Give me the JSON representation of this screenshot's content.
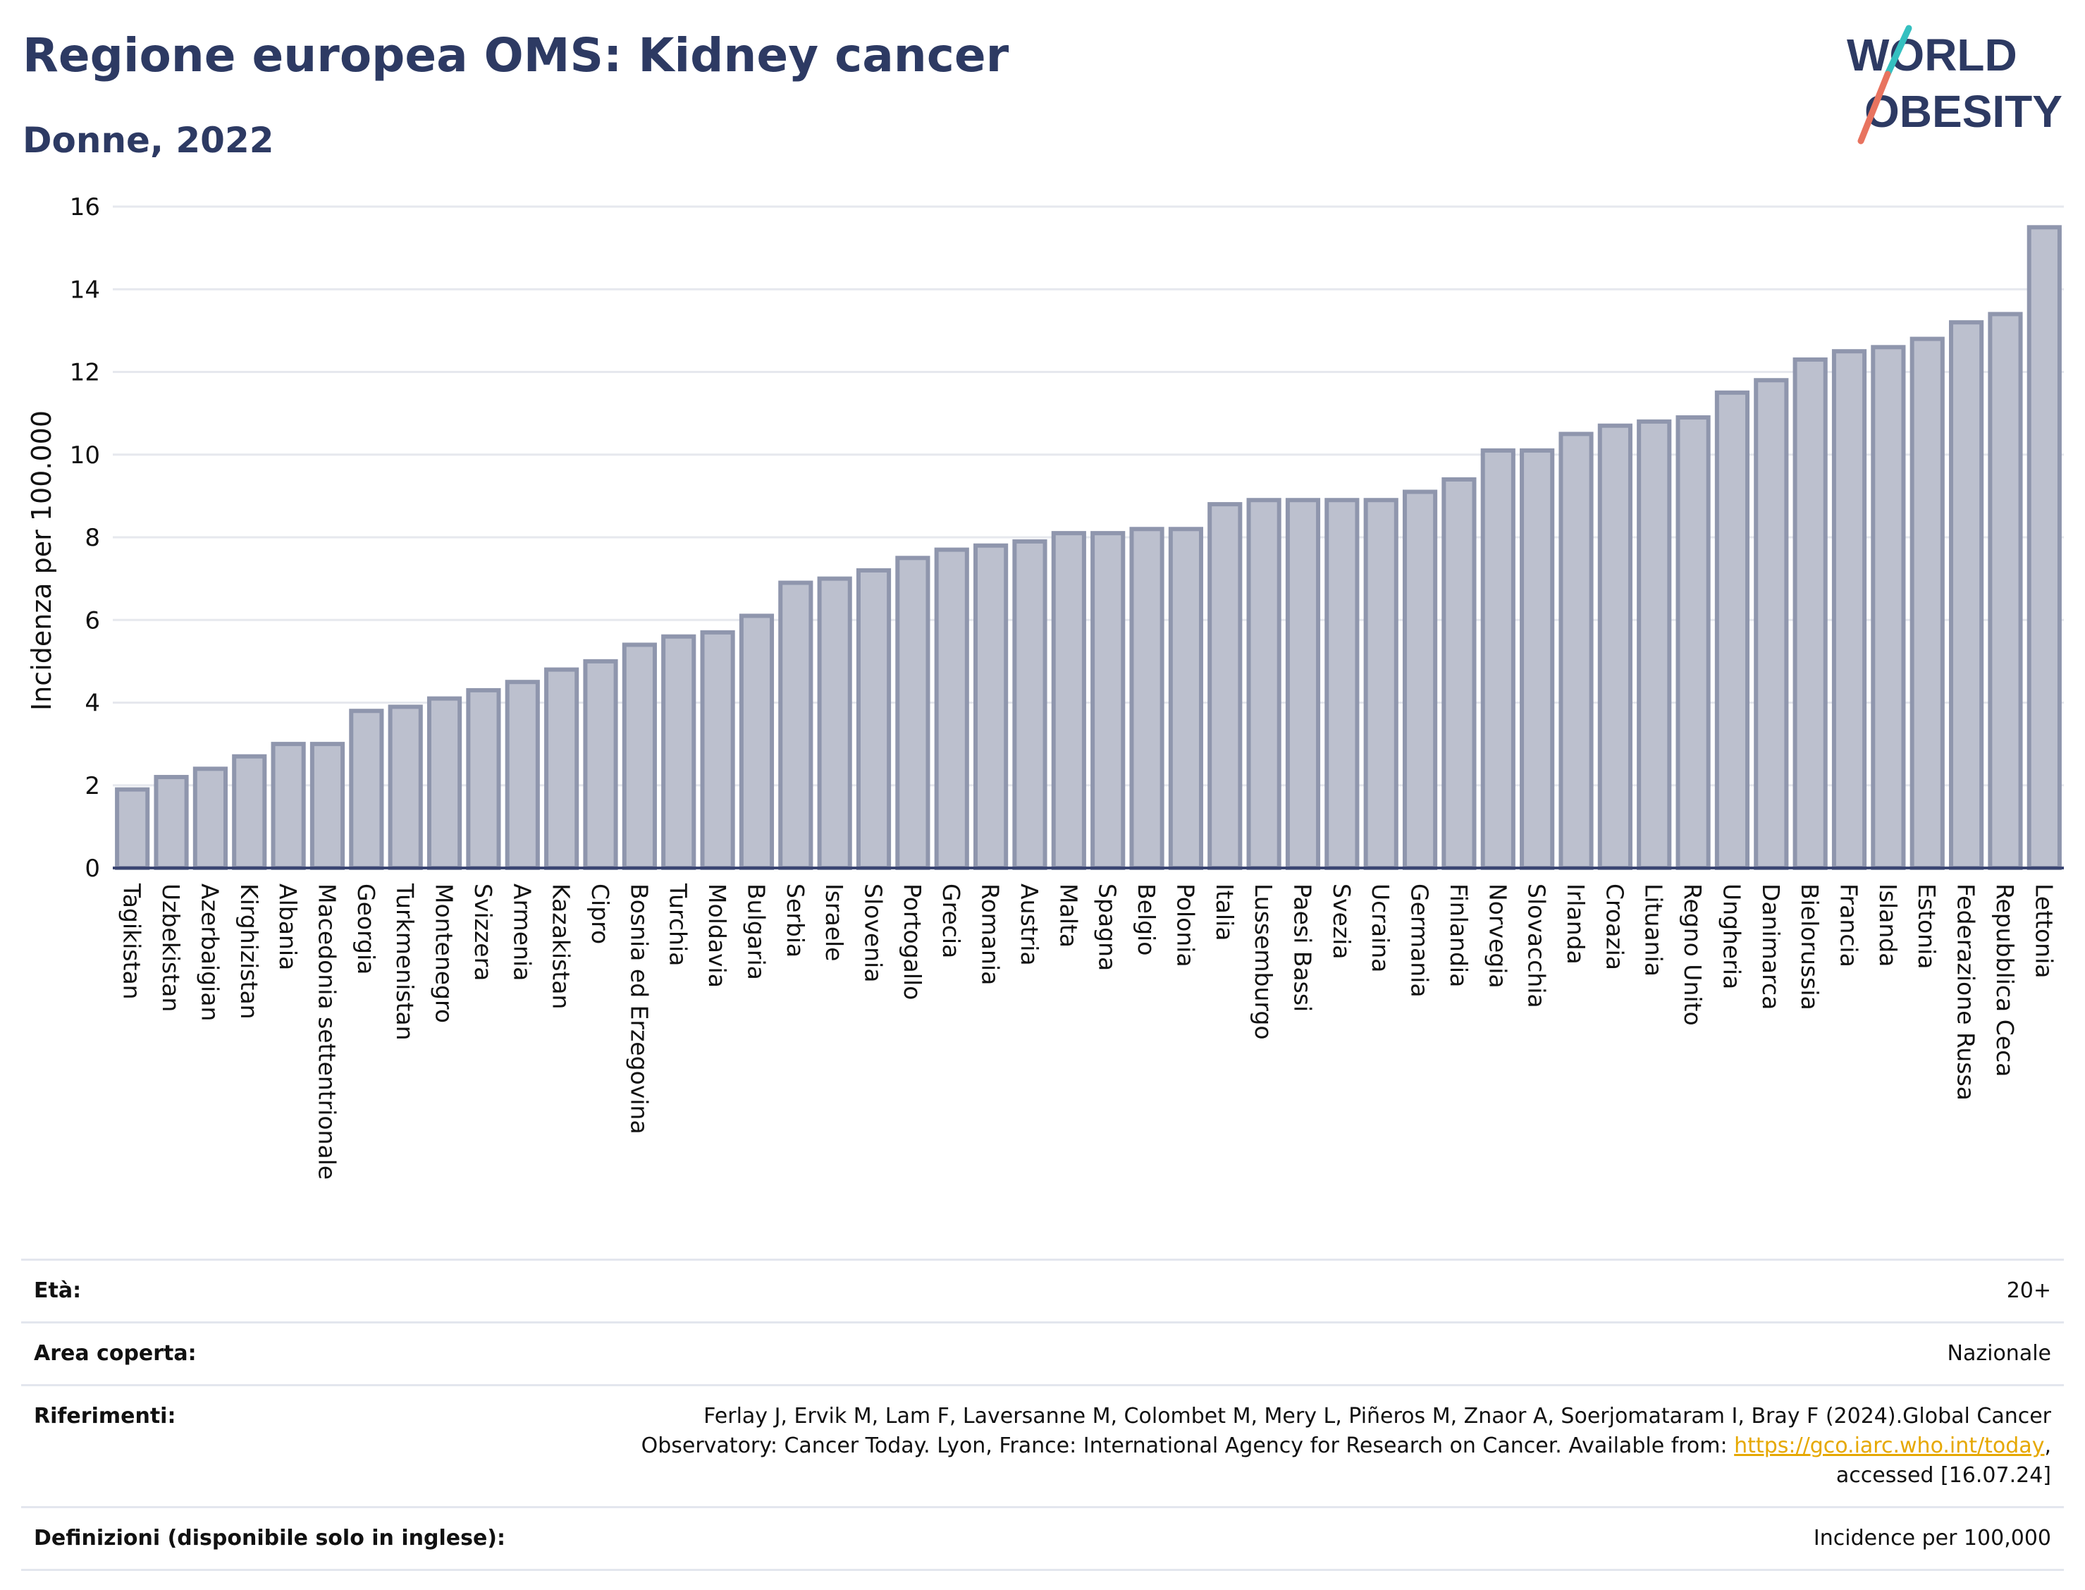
{
  "header": {
    "title": "Regione europea OMS: Kidney cancer",
    "subtitle": "Donne, 2022",
    "logo_line1": "WORLD",
    "logo_line2": "OBESITY"
  },
  "colors": {
    "title": "#2d3a63",
    "bar_fill": "#bcc0ce",
    "bar_stroke": "#8f96ad",
    "grid": "#e6e8ee",
    "axis": "#3a4572",
    "logo_slash_top": "#35c0c0",
    "logo_slash_bottom": "#e8735f"
  },
  "chart_data": {
    "type": "bar",
    "title": "",
    "xlabel": "",
    "ylabel": "Incidenza per 100.000",
    "ylim": [
      0,
      16
    ],
    "yticks": [
      0,
      2,
      4,
      6,
      8,
      10,
      12,
      14,
      16
    ],
    "grid": true,
    "categories": [
      "Tagikistan",
      "Uzbekistan",
      "Azerbaigian",
      "Kirghizistan",
      "Albania",
      "Macedonia settentrionale",
      "Georgia",
      "Turkmenistan",
      "Montenegro",
      "Svizzera",
      "Armenia",
      "Kazakistan",
      "Cipro",
      "Bosnia ed Erzegovina",
      "Turchia",
      "Moldavia",
      "Bulgaria",
      "Serbia",
      "Israele",
      "Slovenia",
      "Portogallo",
      "Grecia",
      "Romania",
      "Austria",
      "Malta",
      "Spagna",
      "Belgio",
      "Polonia",
      "Italia",
      "Lussemburgo",
      "Paesi Bassi",
      "Svezia",
      "Ucraina",
      "Germania",
      "Finlandia",
      "Norvegia",
      "Slovacchia",
      "Irlanda",
      "Croazia",
      "Lituania",
      "Regno Unito",
      "Ungheria",
      "Danimarca",
      "Bielorussia",
      "Francia",
      "Islanda",
      "Estonia",
      "Federazione Russa",
      "Repubblica Ceca",
      "Lettonia"
    ],
    "values": [
      1.9,
      2.2,
      2.4,
      2.7,
      3.0,
      3.0,
      3.8,
      3.9,
      4.1,
      4.3,
      4.5,
      4.8,
      5.0,
      5.4,
      5.6,
      5.7,
      6.1,
      6.9,
      7.0,
      7.2,
      7.5,
      7.7,
      7.8,
      7.9,
      8.1,
      8.1,
      8.2,
      8.2,
      8.8,
      8.9,
      8.9,
      8.9,
      8.9,
      9.1,
      9.4,
      10.1,
      10.1,
      10.5,
      10.7,
      10.8,
      10.9,
      11.5,
      11.8,
      12.3,
      12.5,
      12.6,
      12.8,
      13.2,
      13.4,
      15.5
    ]
  },
  "info": {
    "age_label": "Età:",
    "age_value": "20+",
    "area_label": "Area coperta:",
    "area_value": "Nazionale",
    "ref_label": "Riferimenti:",
    "ref_line1": "Ferlay J, Ervik M, Lam F, Laversanne M, Colombet M, Mery L, Piñeros M, Znaor A, Soerjomataram I, Bray F (2024).Global Cancer",
    "ref_line2": "Observatory: Cancer Today. Lyon, France: International Agency for Research on Cancer. Available from:",
    "ref_link": "https://gco.iarc.who.int/today",
    "ref_line3": "accessed [16.07.24]",
    "def_label": "Definizioni (disponibile solo in inglese):",
    "def_value": "Incidence per 100,000"
  }
}
